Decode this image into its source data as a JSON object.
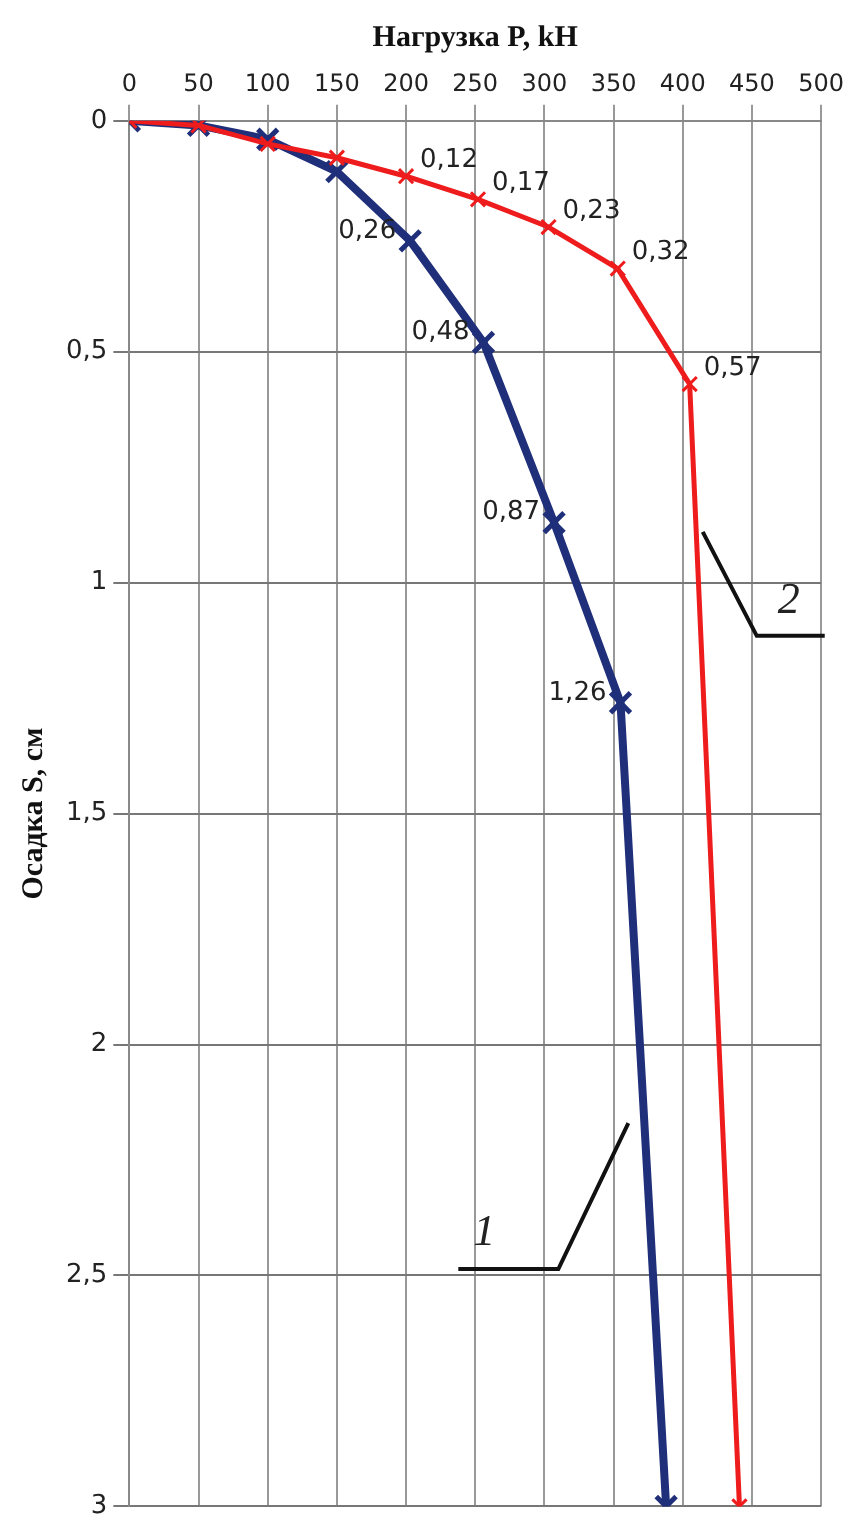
{
  "chart_data": {
    "type": "line",
    "xlabel": "Нагрузка P, kH",
    "ylabel": "Осадка S, см",
    "xlim": [
      0,
      500
    ],
    "xticks": [
      0,
      50,
      100,
      150,
      200,
      250,
      300,
      350,
      400,
      450,
      500
    ],
    "ylim": [
      3,
      0
    ],
    "yticks": [
      0,
      {
        "value": 0.5,
        "label": "0,5"
      },
      1,
      {
        "value": 1.5,
        "label": "1,5"
      },
      2,
      {
        "value": 2.5,
        "label": "2,5"
      },
      3
    ],
    "grid": true,
    "legend": false,
    "line_style": "solid",
    "series": [
      {
        "color": "#1f2f7a",
        "marker": "cross",
        "x": [
          0,
          50,
          100,
          150,
          203,
          256,
          307,
          355,
          388
        ],
        "values": [
          0,
          0.01,
          0.04,
          0.11,
          0.26,
          0.48,
          0.87,
          1.26,
          3
        ],
        "value_labels": [
          null,
          null,
          null,
          null,
          "0,26",
          "0,48",
          "0,87",
          "1,26",
          null
        ]
      },
      {
        "color": "#ee1c1c",
        "marker": "cross",
        "x": [
          0,
          50,
          100,
          150,
          200,
          252,
          303,
          353,
          405,
          441
        ],
        "values": [
          0,
          0.01,
          0.05,
          0.08,
          0.12,
          0.17,
          0.23,
          0.32,
          0.57,
          3
        ],
        "value_labels": [
          null,
          null,
          null,
          null,
          "0,12",
          "0,17",
          "0,23",
          "0,32",
          "0,57",
          null
        ]
      }
    ],
    "annotations": [
      {
        "text": "1",
        "x": 365,
        "y": 2.17
      },
      {
        "text": "2",
        "x": 413,
        "y": 0.89
      }
    ]
  }
}
